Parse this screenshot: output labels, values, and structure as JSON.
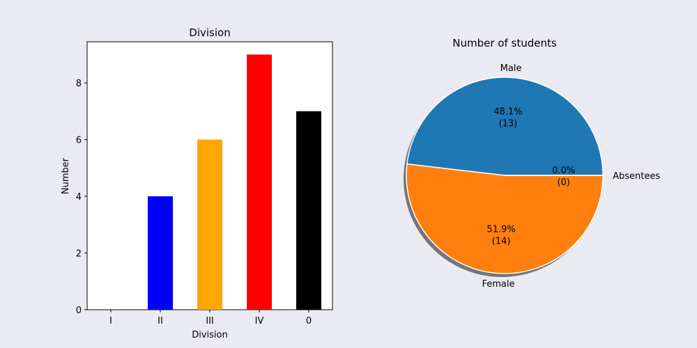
{
  "background": "#eaeaf2",
  "chart_data": [
    {
      "type": "bar",
      "title": "Division",
      "xlabel": "Division",
      "ylabel": "Number",
      "categories": [
        "I",
        "II",
        "III",
        "IV",
        "0"
      ],
      "values": [
        0,
        4,
        6,
        9,
        7
      ],
      "colors": [
        "#ffffff",
        "#0000ff",
        "#ffa500",
        "#ff0000",
        "#000000"
      ],
      "ylim": [
        0,
        9.45
      ],
      "yticks": [
        "0",
        "2",
        "4",
        "6",
        "8"
      ],
      "grid": false,
      "legend": "none"
    },
    {
      "type": "pie",
      "title": "Number of students",
      "labels": [
        "Male",
        "Female",
        "Absentees"
      ],
      "values": [
        13,
        14,
        0
      ],
      "percent_labels": [
        "48.1%",
        "51.9%",
        "0.0%"
      ],
      "count_labels": [
        "(13)",
        "(14)",
        "(0)"
      ],
      "colors": [
        "#1f77b4",
        "#ff7f0e",
        "#2ca02c"
      ],
      "shadow": true,
      "start_angle": 0,
      "legend": "none"
    }
  ]
}
